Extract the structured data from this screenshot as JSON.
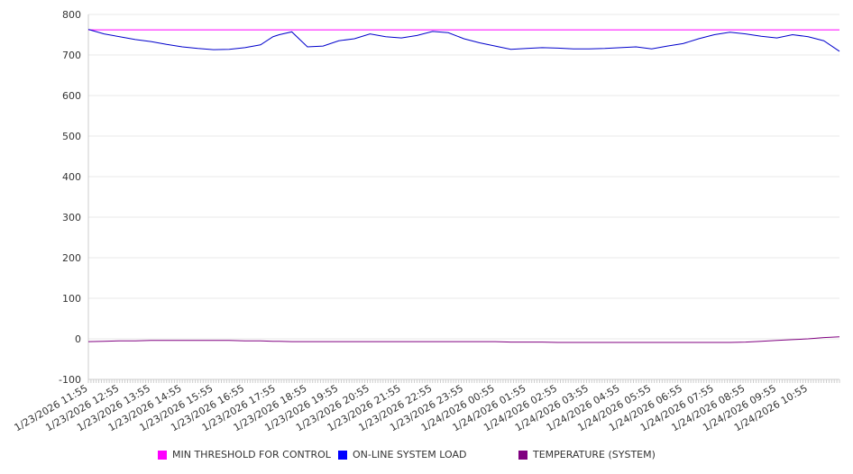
{
  "chart_data": {
    "type": "line",
    "title": "",
    "xlabel": "",
    "ylabel": "",
    "ylim": [
      -100,
      800
    ],
    "yticks": [
      -100,
      0,
      100,
      200,
      300,
      400,
      500,
      600,
      700,
      800
    ],
    "grid": true,
    "legend_position": "bottom",
    "x_hours_from_start": [
      0,
      0.5,
      1,
      1.5,
      2,
      2.5,
      3,
      3.5,
      4,
      4.5,
      5,
      5.5,
      5.9,
      6.1,
      6.5,
      7,
      7.5,
      8,
      8.5,
      9,
      9.5,
      10,
      10.5,
      11,
      11.5,
      12,
      12.5,
      13,
      13.5,
      14,
      14.5,
      15,
      15.5,
      16,
      16.5,
      17,
      17.5,
      18,
      18.5,
      19,
      19.5,
      20,
      20.5,
      21,
      21.5,
      22,
      22.5,
      23,
      23.5,
      24
    ],
    "xtick_labels": [
      "1/23/2026 11:55",
      "1/23/2026 12:55",
      "1/23/2026 13:55",
      "1/23/2026 14:55",
      "1/23/2026 15:55",
      "1/23/2026 16:55",
      "1/23/2026 17:55",
      "1/23/2026 18:55",
      "1/23/2026 19:55",
      "1/23/2026 20:55",
      "1/23/2026 21:55",
      "1/23/2026 22:55",
      "1/23/2026 23:55",
      "1/24/2026 00:55",
      "1/24/2026 01:55",
      "1/24/2026 02:55",
      "1/24/2026 03:55",
      "1/24/2026 04:55",
      "1/24/2026 05:55",
      "1/24/2026 06:55",
      "1/24/2026 07:55",
      "1/24/2026 08:55",
      "1/24/2026 09:55",
      "1/24/2026 10:55"
    ],
    "series": [
      {
        "name": "MIN THRESHOLD FOR CONTROL",
        "color": "#ff00ff",
        "values": [
          762,
          762,
          762,
          762,
          762,
          762,
          762,
          762,
          762,
          762,
          762,
          762,
          762,
          762,
          762,
          762,
          762,
          762,
          762,
          762,
          762,
          762,
          762,
          762,
          762,
          762,
          762,
          762,
          762,
          762,
          762,
          762,
          762,
          762,
          762,
          762,
          762,
          762,
          762,
          762,
          762,
          762,
          762,
          762,
          762,
          762,
          762,
          762,
          762,
          762
        ]
      },
      {
        "name": "ON-LINE SYSTEM LOAD",
        "color": "#0000cc",
        "values": [
          763,
          752,
          745,
          738,
          733,
          726,
          720,
          716,
          713,
          714,
          718,
          725,
          745,
          750,
          757,
          720,
          722,
          735,
          740,
          752,
          745,
          742,
          748,
          758,
          755,
          740,
          730,
          722,
          714,
          716,
          718,
          717,
          715,
          715,
          716,
          718,
          720,
          715,
          722,
          728,
          740,
          750,
          756,
          752,
          746,
          742,
          750,
          745,
          735,
          709
        ]
      },
      {
        "name": "TEMPERATURE (SYSTEM)",
        "color": "#800080",
        "values": [
          -7,
          -6,
          -5,
          -5,
          -4,
          -4,
          -4,
          -4,
          -4,
          -4,
          -5,
          -5,
          -6,
          -6,
          -7,
          -7,
          -7,
          -7,
          -7,
          -7,
          -7,
          -7,
          -7,
          -7,
          -7,
          -7,
          -7,
          -7,
          -8,
          -8,
          -8,
          -9,
          -9,
          -9,
          -9,
          -9,
          -9,
          -9,
          -9,
          -9,
          -9,
          -9,
          -9,
          -8,
          -6,
          -4,
          -2,
          0,
          3,
          5
        ]
      }
    ]
  }
}
